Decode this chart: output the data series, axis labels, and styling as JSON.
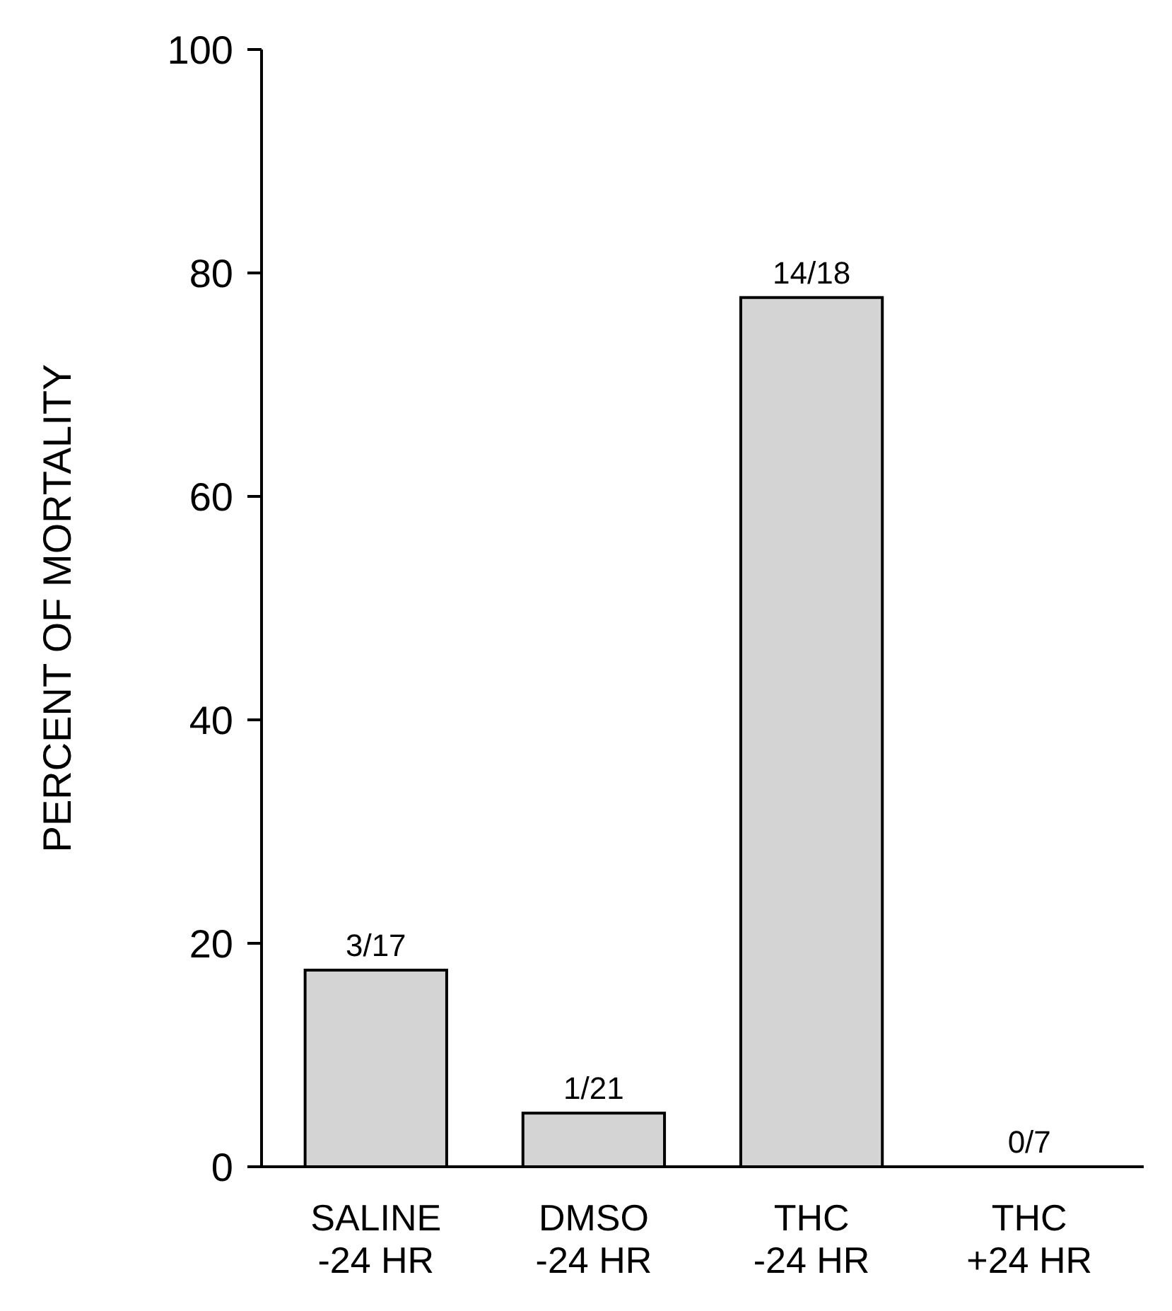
{
  "chart_data": {
    "type": "bar",
    "ylabel": "PERCENT OF MORTALITY",
    "categories": [
      "SALINE -24 HR",
      "DMSO -24 HR",
      "THC -24 HR",
      "THC +24 HR"
    ],
    "values": [
      17.6,
      4.8,
      77.8,
      0
    ],
    "value_labels": [
      "3/17",
      "1/21",
      "14/18",
      "0/7"
    ],
    "color": "#d4d4d4",
    "ylim": [
      0,
      100
    ],
    "yticks": [
      0,
      20,
      40,
      60,
      80,
      100
    ],
    "grid": false
  }
}
